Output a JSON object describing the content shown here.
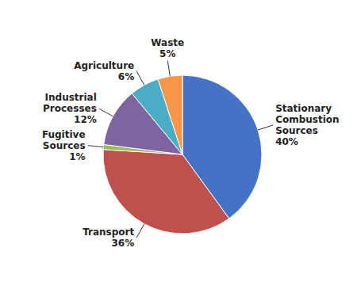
{
  "chart_data": {
    "type": "pie",
    "categories": [
      "Stationary\nCombustion\nSources",
      "Transport",
      "Fugitive\nSources",
      "Industrial\nProcesses",
      "Agriculture",
      "Waste"
    ],
    "values": [
      40,
      36,
      1,
      12,
      6,
      5
    ],
    "value_labels": [
      "40%",
      "36%",
      "1%",
      "12%",
      "6%",
      "5%"
    ],
    "colors": [
      "#4472C4",
      "#C0504D",
      "#9BBB59",
      "#8064A2",
      "#4BACC6",
      "#F79646"
    ],
    "data_labels": true
  }
}
